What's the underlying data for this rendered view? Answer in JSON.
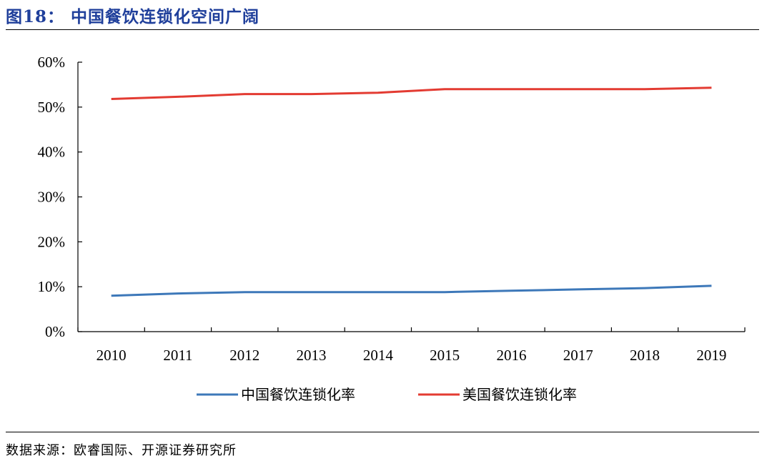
{
  "header": {
    "title": "图18：  中国餐饮连锁化空间广阔"
  },
  "footer": {
    "source": "数据来源：欧睿国际、开源证券研究所"
  },
  "chart_data": {
    "type": "line",
    "title": "中国餐饮连锁化空间广阔",
    "xlabel": "",
    "ylabel": "",
    "categories": [
      "2010",
      "2011",
      "2012",
      "2013",
      "2014",
      "2015",
      "2016",
      "2017",
      "2018",
      "2019"
    ],
    "ylim": [
      0,
      60
    ],
    "yticks": [
      0,
      10,
      20,
      30,
      40,
      50,
      60
    ],
    "ytick_labels": [
      "0%",
      "10%",
      "20%",
      "30%",
      "40%",
      "50%",
      "60%"
    ],
    "grid": false,
    "legend_position": "bottom",
    "series": [
      {
        "name": "中国餐饮连锁化率",
        "color": "#3d78b9",
        "values": [
          8.0,
          8.5,
          8.8,
          8.8,
          8.8,
          8.8,
          9.1,
          9.4,
          9.7,
          10.2
        ]
      },
      {
        "name": "美国餐饮连锁化率",
        "color": "#e33b32",
        "values": [
          51.8,
          52.3,
          52.9,
          52.9,
          53.2,
          54.0,
          54.0,
          54.0,
          54.0,
          54.3
        ]
      }
    ]
  }
}
